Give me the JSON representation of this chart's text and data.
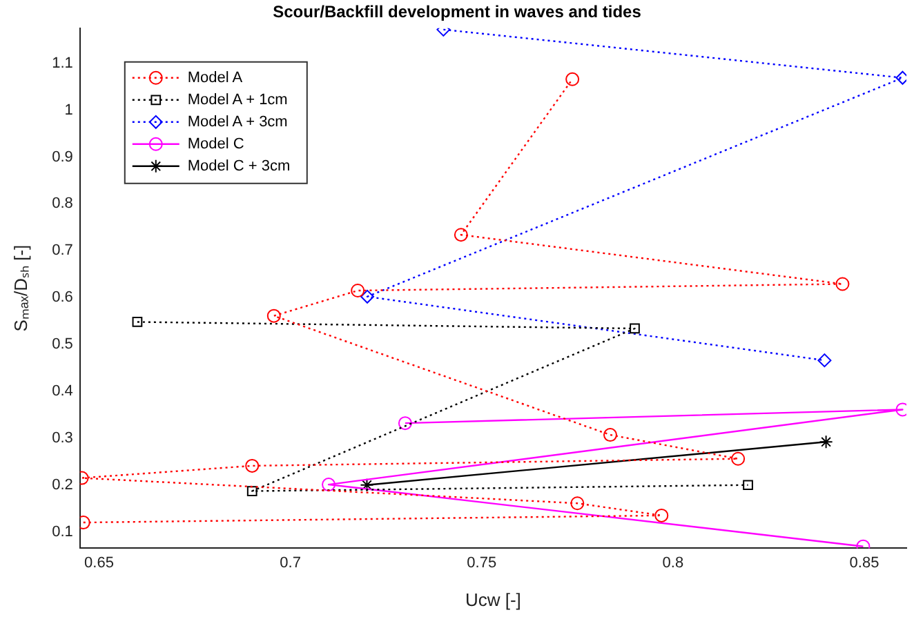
{
  "chart_data": {
    "type": "line",
    "title": "Scour/Backfill development in waves and tides",
    "xlabel": "Ucw [-]",
    "ylabel": "Sₘₐₓ/Dₛₕ [-]",
    "xlim": [
      0.645,
      0.861
    ],
    "xticks": [
      0.65,
      0.7,
      0.75,
      0.8,
      0.85
    ],
    "ylim": [
      0.065,
      1.175
    ],
    "yticks": [
      0.1,
      0.2,
      0.3,
      0.4,
      0.5,
      0.6,
      0.7,
      0.8,
      0.9,
      1,
      1.1
    ],
    "grid": false,
    "legend": "top left",
    "series": [
      {
        "name": "Model A",
        "color": "#ff0000",
        "marker": "circle",
        "line_style": "dotted",
        "x": [
          0.6459,
          0.797,
          0.775,
          0.6455,
          0.69,
          0.817,
          0.7836,
          0.6957,
          0.7176,
          0.8443,
          0.7446,
          0.7737
        ],
        "values": [
          0.12,
          0.135,
          0.161,
          0.215,
          0.241,
          0.256,
          0.307,
          0.561,
          0.615,
          0.629,
          0.734,
          1.066
        ]
      },
      {
        "name": "Model A + 1cm",
        "color": "#000000",
        "marker": "square",
        "line_style": "dotted",
        "x": [
          0.66,
          0.79,
          0.69,
          0.8196
        ],
        "values": [
          0.548,
          0.534,
          0.187,
          0.2
        ]
      },
      {
        "name": "Model A + 3cm",
        "color": "#0000ff",
        "marker": "diamond",
        "line_style": "dotted",
        "x": [
          0.74,
          0.86,
          0.7201,
          0.8396
        ],
        "values": [
          1.172,
          1.069,
          0.602,
          0.466
        ]
      },
      {
        "name": "Model C",
        "color": "#ff00ff",
        "marker": "circle",
        "line_style": "solid",
        "x": [
          0.73,
          0.86,
          0.71,
          0.8497
        ],
        "values": [
          0.332,
          0.361,
          0.201,
          0.069
        ]
      },
      {
        "name": "Model C + 3cm",
        "color": "#000000",
        "marker": "cross",
        "line_style": "solid",
        "x": [
          0.72,
          0.84
        ],
        "values": [
          0.2,
          0.292
        ]
      }
    ]
  }
}
